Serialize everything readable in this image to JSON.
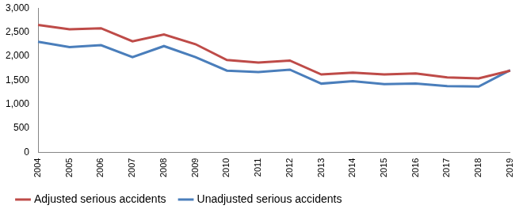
{
  "chart_data": {
    "type": "line",
    "categories": [
      "2004",
      "2005",
      "2006",
      "2007",
      "2008",
      "2009",
      "2010",
      "2011",
      "2012",
      "2013",
      "2014",
      "2015",
      "2016",
      "2017",
      "2018",
      "2019"
    ],
    "series": [
      {
        "name": "Adjusted serious accidents",
        "color": "#be4b48",
        "values": [
          2650,
          2560,
          2580,
          2310,
          2450,
          2250,
          1920,
          1870,
          1910,
          1620,
          1660,
          1620,
          1640,
          1560,
          1540,
          1700
        ]
      },
      {
        "name": "Unadjusted serious accidents",
        "color": "#4a7ebb",
        "values": [
          2300,
          2190,
          2230,
          1980,
          2210,
          1980,
          1700,
          1670,
          1720,
          1430,
          1480,
          1420,
          1430,
          1380,
          1370,
          1710
        ]
      }
    ],
    "ylim": [
      0,
      3000
    ],
    "yticks": [
      0,
      500,
      {
        "value": 1000,
        "label": "1,000"
      },
      {
        "value": 1500,
        "label": "1,500"
      },
      {
        "value": 2000,
        "label": "2,000"
      },
      {
        "value": 2500,
        "label": "2,500"
      },
      {
        "value": 3000,
        "label": "3,000"
      }
    ],
    "grid": false,
    "legend": "bottom"
  }
}
